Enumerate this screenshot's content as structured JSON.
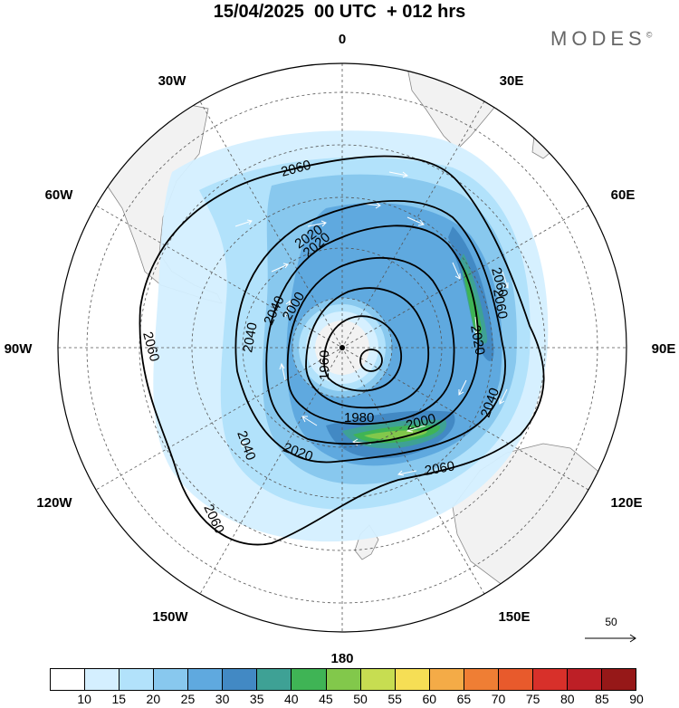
{
  "header": {
    "title": "15/04/2025  00 UTC  + 012 hrs",
    "brand": "MODES",
    "brand_mark": "©"
  },
  "map": {
    "projection": "south-polar-stereographic",
    "longitude_labels": {
      "top": "0",
      "top_right": "30E",
      "upper_right": "60E",
      "right": "90E",
      "lower_right": "120E",
      "bottom_right": "150E",
      "bottom": "180",
      "bottom_left": "150W",
      "lower_left": "120W",
      "left": "90W",
      "upper_left": "60W",
      "top_left": "30W"
    },
    "contour_labels": [
      "2060",
      "2020",
      "2000",
      "1960",
      "2040",
      "2060",
      "2040",
      "2020",
      "2020",
      "2060",
      "2040",
      "2060",
      "1980",
      "2000",
      "2020",
      "2040",
      "2060",
      "2060"
    ],
    "colors": {
      "land": "#f2f2f2",
      "coast": "#888888",
      "graticule": "#555555",
      "contour": "#000000",
      "arrows": "#ffffff"
    }
  },
  "reference_vector": {
    "label": "50"
  },
  "colorbar": {
    "labels": [
      "10",
      "15",
      "20",
      "25",
      "30",
      "35",
      "40",
      "45",
      "50",
      "55",
      "60",
      "65",
      "70",
      "75",
      "80",
      "85",
      "90"
    ],
    "colors": [
      "#ffffff",
      "#d4efff",
      "#b2e2fb",
      "#88c8ee",
      "#5fa9df",
      "#4289c4",
      "#3ea195",
      "#3fb455",
      "#82c84b",
      "#c7dd51",
      "#f6de55",
      "#f4ab47",
      "#ef7e34",
      "#e85a2c",
      "#d8302a",
      "#bd1f26",
      "#961818"
    ]
  }
}
